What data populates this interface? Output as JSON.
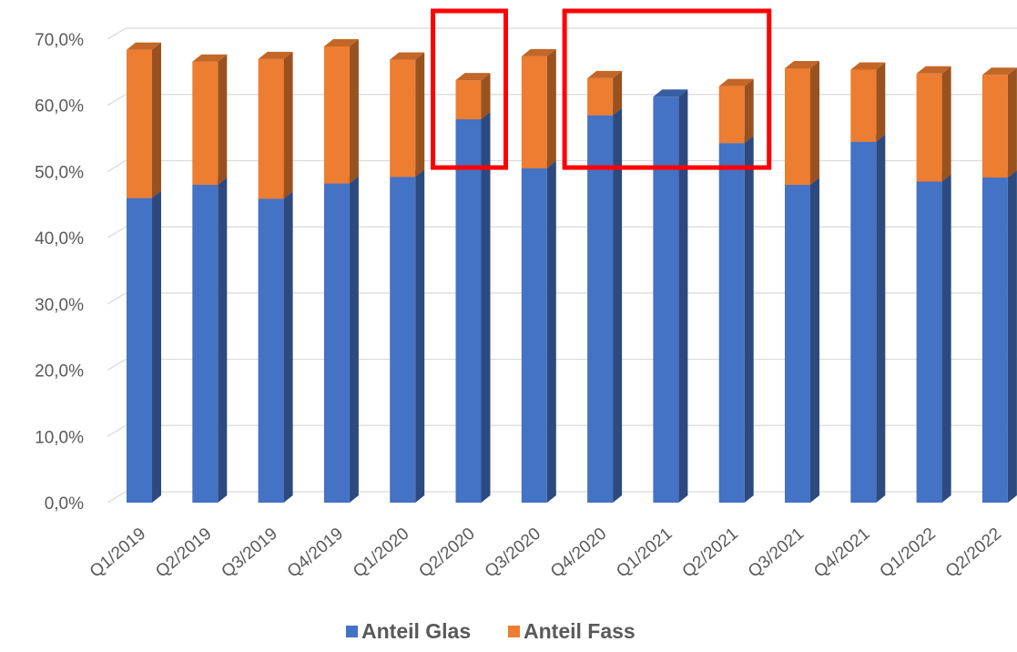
{
  "chart_data": {
    "type": "bar",
    "stacked": true,
    "view": "3d-column",
    "categories": [
      "Q1/2019",
      "Q2/2019",
      "Q3/2019",
      "Q4/2019",
      "Q1/2020",
      "Q2/2020",
      "Q3/2020",
      "Q4/2020",
      "Q1/2021",
      "Q2/2021",
      "Q3/2021",
      "Q4/2021",
      "Q1/2022",
      "Q2/2022"
    ],
    "series": [
      {
        "name": "Anteil Glas",
        "color": "#4472C4",
        "values": [
          46.0,
          48.0,
          45.9,
          48.2,
          49.2,
          57.9,
          50.5,
          58.5,
          61.3,
          54.3,
          48.0,
          54.5,
          48.5,
          49.1
        ]
      },
      {
        "name": "Anteil Fass",
        "color": "#ED7D31",
        "values": [
          22.4,
          18.6,
          21.1,
          20.7,
          17.7,
          5.9,
          16.9,
          5.6,
          0.0,
          8.6,
          17.6,
          10.9,
          16.3,
          15.5
        ]
      }
    ],
    "ylim": [
      0,
      70
    ],
    "yticks": [
      "0,0%",
      "10,0%",
      "20,0%",
      "30,0%",
      "40,0%",
      "50,0%",
      "60,0%",
      "70,0%"
    ],
    "ytick_values": [
      0,
      10,
      20,
      30,
      40,
      50,
      60,
      70
    ],
    "grid": true,
    "legend": "bottom",
    "highlighted_categories": [
      "Q2/2020",
      "Q4/2020",
      "Q1/2021",
      "Q2/2021"
    ],
    "highlight_color": "#FF0000"
  }
}
